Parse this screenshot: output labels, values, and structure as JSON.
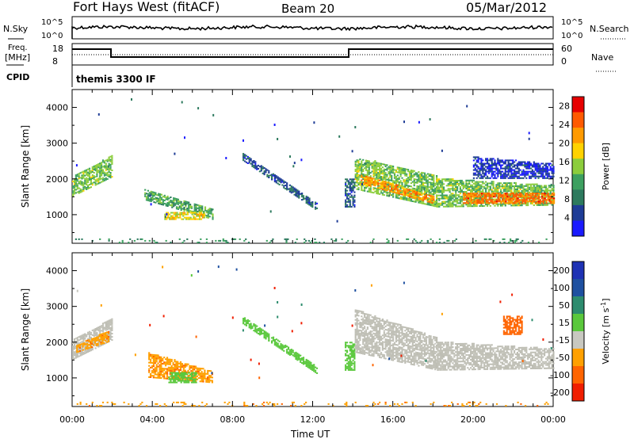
{
  "header": {
    "station": "Fort Hays West (fitACF)",
    "beam": "Beam 20",
    "date": "05/Mar/2012"
  },
  "panels": {
    "nsky_label": "N.Sky",
    "nsearch_label": "N.Search",
    "freq_label_1": "Freq.",
    "freq_label_2": "[MHz]",
    "nave_label": "Nave",
    "cpid_label": "CPID",
    "cpid_text": "themis 3300 IF",
    "noise_left_ticks": [
      "10^5",
      "10^0"
    ],
    "noise_right_ticks": [
      "10^5",
      "10^0"
    ],
    "freq_ticks": [
      "18",
      "8"
    ],
    "nave_ticks": [
      "60",
      "0"
    ]
  },
  "colors": {
    "power_scale": [
      "#1a1aff",
      "#1e3c96",
      "#2d7a5e",
      "#3da060",
      "#8ccd3c",
      "#ffd200",
      "#ff9a00",
      "#ff5a00",
      "#e60000"
    ],
    "velocity_scale": [
      "#1e32b4",
      "#1e50a0",
      "#2d8c6e",
      "#5ac83c",
      "#c8c8c0",
      "#ffa000",
      "#ff6400",
      "#f01e00"
    ],
    "ground_scatter": "#bebeb4"
  },
  "chart_data": [
    {
      "type": "heatmap",
      "name": "power",
      "xlabel": "",
      "ylabel": "Slant Range [km]",
      "x_ticks": [
        "00:00",
        "04:00",
        "08:00",
        "12:00",
        "16:00",
        "20:00",
        "00:00"
      ],
      "y_ticks": [
        "1000",
        "2000",
        "3000",
        "4000"
      ],
      "xlim": [
        0,
        24
      ],
      "ylim": [
        200,
        4500
      ],
      "colorbar_label": "Power [dB]",
      "colorbar_ticks": [
        "4",
        "8",
        "12",
        "16",
        "20",
        "24",
        "28"
      ],
      "colorbar_range": [
        0,
        30
      ],
      "regions": [
        {
          "t0": 0.0,
          "t1": 2.0,
          "r0_start": 1500,
          "r0_end": 2050,
          "r1_start": 2050,
          "r1_end": 2650,
          "value": 14
        },
        {
          "t0": 3.6,
          "t1": 7.0,
          "r0_start": 1400,
          "r0_end": 850,
          "r1_start": 1700,
          "r1_end": 1150,
          "value": 12
        },
        {
          "t0": 4.6,
          "t1": 6.6,
          "r0_start": 850,
          "r0_end": 850,
          "r1_start": 1050,
          "r1_end": 1050,
          "value": 18
        },
        {
          "t0": 8.5,
          "t1": 12.2,
          "r0_start": 2500,
          "r0_end": 1100,
          "r1_start": 2700,
          "r1_end": 1300,
          "value": 6
        },
        {
          "t0": 13.6,
          "t1": 14.1,
          "r0_start": 1200,
          "r0_end": 1200,
          "r1_start": 2000,
          "r1_end": 2000,
          "value": 6
        },
        {
          "t0": 14.1,
          "t1": 18.2,
          "r0_start": 1700,
          "r0_end": 1200,
          "r1_start": 2600,
          "r1_end": 2100,
          "value": 14
        },
        {
          "t0": 14.4,
          "t1": 18.0,
          "r0_start": 1850,
          "r0_end": 1300,
          "r1_start": 2100,
          "r1_end": 1500,
          "value": 22
        },
        {
          "t0": 18.2,
          "t1": 24.0,
          "r0_start": 1200,
          "r0_end": 1250,
          "r1_start": 2000,
          "r1_end": 1800,
          "value": 14
        },
        {
          "t0": 19.5,
          "t1": 24.0,
          "r0_start": 1300,
          "r0_end": 1300,
          "r1_start": 1600,
          "r1_end": 1600,
          "value": 24
        },
        {
          "t0": 20.0,
          "t1": 24.0,
          "r0_start": 2000,
          "r0_end": 2000,
          "r1_start": 2600,
          "r1_end": 2400,
          "value": 4
        },
        {
          "t0": 0.0,
          "t1": 24.0,
          "r0_start": 200,
          "r0_end": 200,
          "r1_start": 330,
          "r1_end": 330,
          "value": 10
        }
      ]
    },
    {
      "type": "heatmap",
      "name": "velocity",
      "xlabel": "Time UT",
      "ylabel": "Slant Range [km]",
      "x_ticks": [
        "00:00",
        "04:00",
        "08:00",
        "12:00",
        "16:00",
        "20:00",
        "00:00"
      ],
      "y_ticks": [
        "1000",
        "2000",
        "3000",
        "4000"
      ],
      "xlim": [
        0,
        24
      ],
      "ylim": [
        200,
        4500
      ],
      "colorbar_label": "Velocity [m s",
      "colorbar_label_sup": "-1",
      "colorbar_label_end": "]",
      "colorbar_ticks": [
        "200",
        "100",
        "50",
        "15",
        "-15",
        "-50",
        "-100",
        "-200"
      ],
      "colorbar_range": [
        -250,
        250
      ],
      "regions": [
        {
          "t0": 0.0,
          "t1": 2.0,
          "r0_start": 1500,
          "r0_end": 2050,
          "r1_start": 2050,
          "r1_end": 2650,
          "value": 0,
          "ground": true
        },
        {
          "t0": 0.2,
          "t1": 1.8,
          "r0_start": 1700,
          "r0_end": 2000,
          "r1_start": 1900,
          "r1_end": 2300,
          "value": -40
        },
        {
          "t0": 3.8,
          "t1": 7.0,
          "r0_start": 1000,
          "r0_end": 850,
          "r1_start": 1700,
          "r1_end": 1150,
          "value": -40
        },
        {
          "t0": 4.8,
          "t1": 6.2,
          "r0_start": 850,
          "r0_end": 850,
          "r1_start": 1150,
          "r1_end": 1150,
          "value": 30
        },
        {
          "t0": 8.5,
          "t1": 12.2,
          "r0_start": 2500,
          "r0_end": 1100,
          "r1_start": 2700,
          "r1_end": 1300,
          "value": 30
        },
        {
          "t0": 13.6,
          "t1": 14.1,
          "r0_start": 1200,
          "r0_end": 1200,
          "r1_start": 2000,
          "r1_end": 2000,
          "value": 30
        },
        {
          "t0": 14.1,
          "t1": 18.2,
          "r0_start": 1700,
          "r0_end": 1200,
          "r1_start": 2900,
          "r1_end": 2100,
          "value": 0,
          "ground": true
        },
        {
          "t0": 18.2,
          "t1": 24.0,
          "r0_start": 1200,
          "r0_end": 1250,
          "r1_start": 2000,
          "r1_end": 1800,
          "value": 0,
          "ground": true
        },
        {
          "t0": 21.5,
          "t1": 22.4,
          "r0_start": 2200,
          "r0_end": 2200,
          "r1_start": 2700,
          "r1_end": 2700,
          "value": -80
        },
        {
          "t0": 0.0,
          "t1": 24.0,
          "r0_start": 200,
          "r0_end": 200,
          "r1_start": 330,
          "r1_end": 330,
          "value": -40
        }
      ]
    }
  ]
}
